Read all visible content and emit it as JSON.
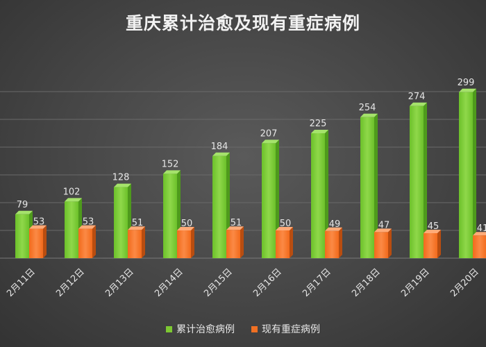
{
  "chart_data": {
    "type": "bar",
    "title": "重庆累计治愈及现有重症病例",
    "categories": [
      "2月11日",
      "2月12日",
      "2月13日",
      "2月14日",
      "2月15日",
      "2月16日",
      "2月17日",
      "2月18日",
      "2月19日",
      "2月20日"
    ],
    "series": [
      {
        "name": "累计治愈病例",
        "values": [
          79,
          102,
          128,
          152,
          184,
          207,
          225,
          254,
          274,
          299
        ],
        "color": "#7dc832"
      },
      {
        "name": "现有重症病例",
        "values": [
          53,
          53,
          51,
          50,
          51,
          50,
          49,
          47,
          45,
          41
        ],
        "color": "#f07023"
      }
    ],
    "ylim": [
      0,
      350
    ],
    "grid": true,
    "legend": "bottom"
  }
}
